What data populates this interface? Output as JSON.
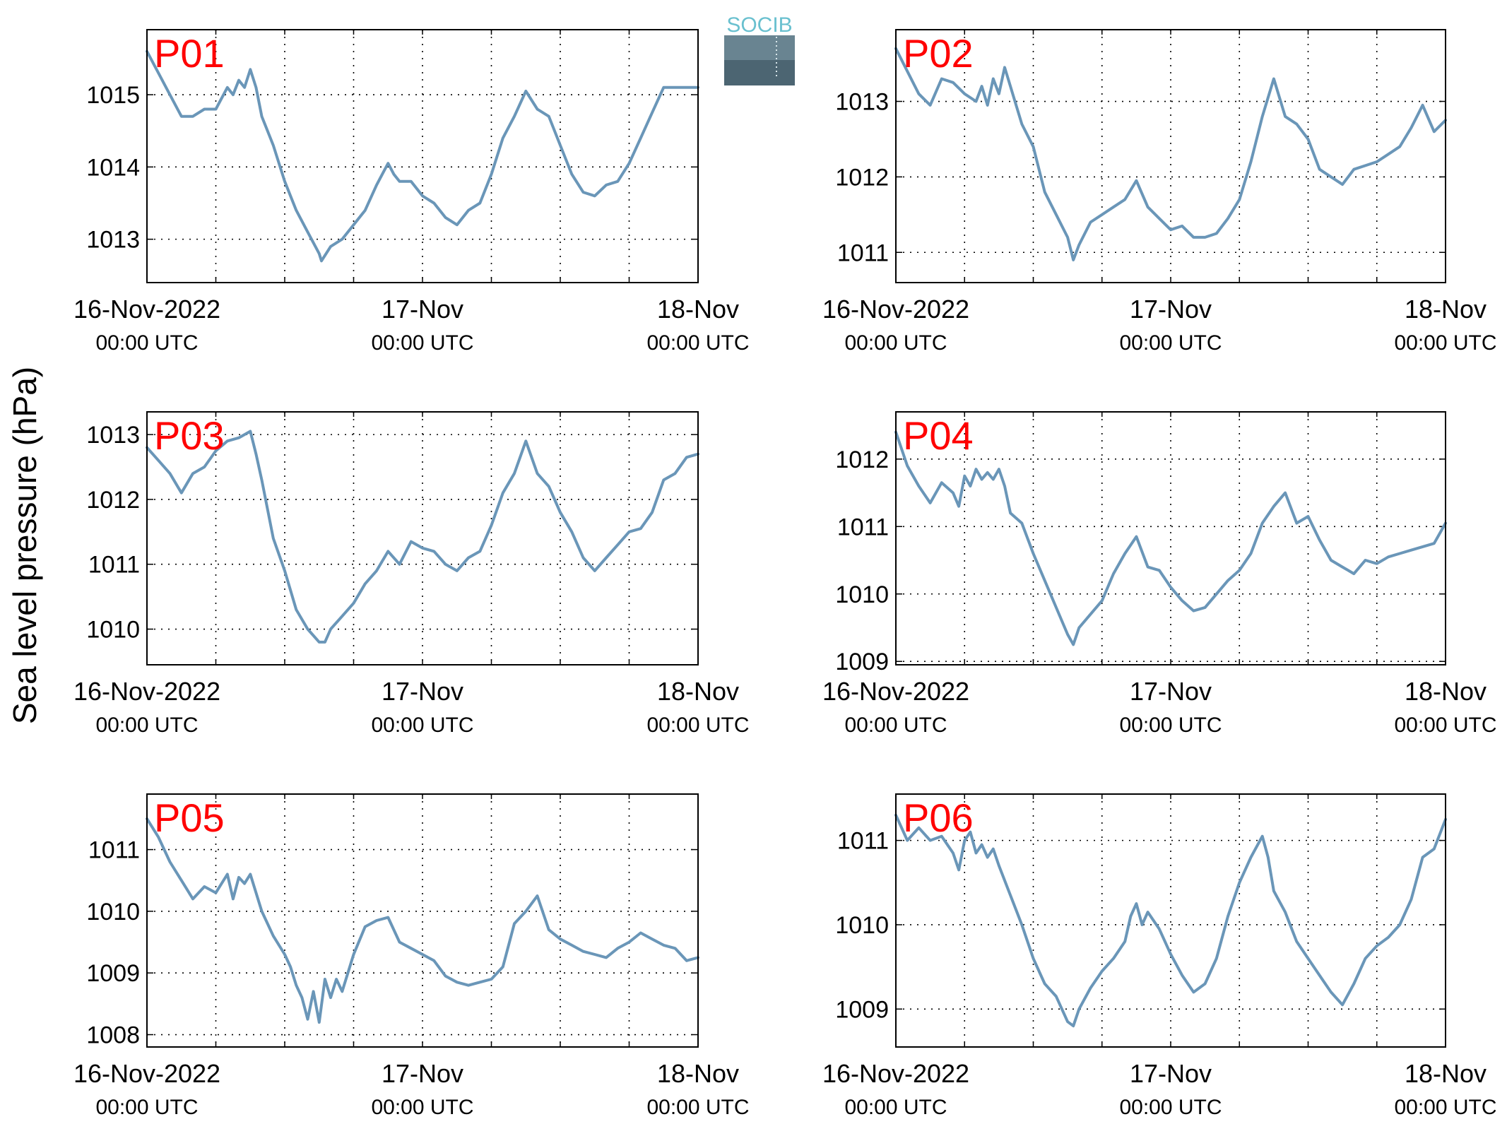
{
  "figure": {
    "ylabel": "Sea level pressure (hPa)",
    "logo_text": "SOCIB",
    "line_color": "#6a96b8",
    "label_color": "#ff0000"
  },
  "chart_data": [
    {
      "type": "line",
      "title": "P01",
      "x_unit": "hours since 16-Nov-2022 00:00 UTC",
      "x_ticks": [
        {
          "date": "16-Nov-2022",
          "time": "00:00 UTC"
        },
        {
          "date": "17-Nov",
          "time": "00:00 UTC"
        },
        {
          "date": "18-Nov",
          "time": "00:00 UTC"
        }
      ],
      "xlim": [
        0,
        48
      ],
      "ylim": [
        1012.4,
        1015.9
      ],
      "yticks": [
        1013,
        1014,
        1015
      ],
      "grid": true,
      "series": [
        {
          "x": [
            0,
            1,
            2,
            3,
            3.5,
            4,
            5,
            6,
            7,
            7.5,
            8,
            8.5,
            9,
            9.5,
            10,
            11,
            12,
            13,
            14,
            15,
            15.2,
            16,
            17,
            18,
            19,
            20,
            20.5,
            21,
            21.5,
            22,
            23,
            24,
            25,
            26,
            27,
            28,
            29,
            30,
            31,
            32,
            33,
            34,
            35,
            36,
            37,
            38,
            39,
            40,
            41,
            42,
            43,
            44,
            45,
            46,
            47,
            48
          ],
          "y": [
            1015.6,
            1015.3,
            1015,
            1014.7,
            1014.7,
            1014.7,
            1014.8,
            1014.8,
            1015.1,
            1015,
            1015.2,
            1015.1,
            1015.35,
            1015.1,
            1014.7,
            1014.3,
            1013.8,
            1013.4,
            1013.1,
            1012.8,
            1012.7,
            1012.9,
            1013,
            1013.2,
            1013.4,
            1013.75,
            1013.9,
            1014.05,
            1013.9,
            1013.8,
            1013.8,
            1013.6,
            1013.5,
            1013.3,
            1013.2,
            1013.4,
            1013.5,
            1013.9,
            1014.4,
            1014.7,
            1015.05,
            1014.8,
            1014.7,
            1014.3,
            1013.9,
            1013.65,
            1013.6,
            1013.75,
            1013.8,
            1014.05,
            1014.4,
            1014.75,
            1015.1,
            1015.1,
            1015.1,
            1015.1
          ]
        }
      ]
    },
    {
      "type": "line",
      "title": "P02",
      "x_unit": "hours since 16-Nov-2022 00:00 UTC",
      "x_ticks": [
        {
          "date": "16-Nov-2022",
          "time": "00:00 UTC"
        },
        {
          "date": "17-Nov",
          "time": "00:00 UTC"
        },
        {
          "date": "18-Nov",
          "time": "00:00 UTC"
        }
      ],
      "xlim": [
        0,
        48
      ],
      "ylim": [
        1010.6,
        1013.95
      ],
      "yticks": [
        1011,
        1012,
        1013
      ],
      "grid": true,
      "series": [
        {
          "x": [
            0,
            1,
            2,
            3,
            4,
            5,
            6,
            7,
            7.5,
            8,
            8.5,
            9,
            9.5,
            10,
            11,
            12,
            13,
            14,
            15,
            15.5,
            16,
            17,
            18,
            19,
            20,
            21,
            22,
            23,
            24,
            25,
            26,
            27,
            28,
            29,
            30,
            31,
            32,
            33,
            34,
            35,
            36,
            37,
            38,
            39,
            40,
            41,
            42,
            43,
            44,
            45,
            46,
            47,
            48
          ],
          "y": [
            1013.7,
            1013.4,
            1013.1,
            1012.95,
            1013.3,
            1013.25,
            1013.1,
            1013.0,
            1013.2,
            1012.95,
            1013.3,
            1013.1,
            1013.45,
            1013.2,
            1012.7,
            1012.4,
            1011.8,
            1011.5,
            1011.2,
            1010.9,
            1011.1,
            1011.4,
            1011.5,
            1011.6,
            1011.7,
            1011.95,
            1011.6,
            1011.45,
            1011.3,
            1011.35,
            1011.2,
            1011.2,
            1011.25,
            1011.45,
            1011.7,
            1012.2,
            1012.8,
            1013.3,
            1012.8,
            1012.7,
            1012.5,
            1012.1,
            1012.0,
            1011.9,
            1012.1,
            1012.15,
            1012.2,
            1012.3,
            1012.4,
            1012.65,
            1012.95,
            1012.6,
            1012.75
          ]
        }
      ]
    },
    {
      "type": "line",
      "title": "P03",
      "x_unit": "hours since 16-Nov-2022 00:00 UTC",
      "x_ticks": [
        {
          "date": "16-Nov-2022",
          "time": "00:00 UTC"
        },
        {
          "date": "17-Nov",
          "time": "00:00 UTC"
        },
        {
          "date": "18-Nov",
          "time": "00:00 UTC"
        }
      ],
      "xlim": [
        0,
        48
      ],
      "ylim": [
        1009.45,
        1013.35
      ],
      "yticks": [
        1010,
        1011,
        1012,
        1013
      ],
      "grid": true,
      "series": [
        {
          "x": [
            0,
            1,
            2,
            3,
            4,
            5,
            6,
            7,
            8,
            9,
            9.5,
            10,
            11,
            12,
            13,
            14,
            15,
            15.5,
            16,
            17,
            18,
            19,
            20,
            21,
            22,
            23,
            24,
            25,
            26,
            27,
            28,
            29,
            30,
            31,
            32,
            33,
            34,
            35,
            36,
            37,
            38,
            39,
            40,
            41,
            42,
            43,
            44,
            45,
            46,
            47,
            48
          ],
          "y": [
            1012.8,
            1012.6,
            1012.4,
            1012.1,
            1012.4,
            1012.5,
            1012.75,
            1012.9,
            1012.95,
            1013.05,
            1012.7,
            1012.3,
            1011.4,
            1010.9,
            1010.3,
            1010.0,
            1009.8,
            1009.8,
            1010.0,
            1010.2,
            1010.4,
            1010.7,
            1010.9,
            1011.2,
            1011.0,
            1011.35,
            1011.25,
            1011.2,
            1011.0,
            1010.9,
            1011.1,
            1011.2,
            1011.6,
            1012.1,
            1012.4,
            1012.9,
            1012.4,
            1012.2,
            1011.8,
            1011.5,
            1011.1,
            1010.9,
            1011.1,
            1011.3,
            1011.5,
            1011.55,
            1011.8,
            1012.3,
            1012.4,
            1012.65,
            1012.7
          ]
        }
      ]
    },
    {
      "type": "line",
      "title": "P04",
      "x_unit": "hours since 16-Nov-2022 00:00 UTC",
      "x_ticks": [
        {
          "date": "16-Nov-2022",
          "time": "00:00 UTC"
        },
        {
          "date": "17-Nov",
          "time": "00:00 UTC"
        },
        {
          "date": "18-Nov",
          "time": "00:00 UTC"
        }
      ],
      "xlim": [
        0,
        48
      ],
      "ylim": [
        1008.95,
        1012.7
      ],
      "yticks": [
        1009,
        1010,
        1011,
        1012
      ],
      "grid": true,
      "series": [
        {
          "x": [
            0,
            1,
            2,
            3,
            4,
            5,
            5.5,
            6,
            6.5,
            7,
            7.5,
            8,
            8.5,
            9,
            9.5,
            10,
            11,
            12,
            13,
            14,
            15,
            15.5,
            16,
            17,
            18,
            19,
            20,
            21,
            22,
            23,
            24,
            25,
            26,
            27,
            28,
            29,
            30,
            31,
            32,
            33,
            34,
            35,
            36,
            37,
            38,
            39,
            40,
            41,
            42,
            43,
            44,
            45,
            46,
            47,
            48
          ],
          "y": [
            1012.4,
            1011.9,
            1011.6,
            1011.35,
            1011.65,
            1011.5,
            1011.3,
            1011.75,
            1011.6,
            1011.85,
            1011.7,
            1011.8,
            1011.7,
            1011.85,
            1011.6,
            1011.2,
            1011.05,
            1010.6,
            1010.2,
            1009.8,
            1009.4,
            1009.25,
            1009.5,
            1009.7,
            1009.9,
            1010.3,
            1010.6,
            1010.85,
            1010.4,
            1010.35,
            1010.1,
            1009.9,
            1009.75,
            1009.8,
            1010.0,
            1010.2,
            1010.35,
            1010.6,
            1011.05,
            1011.3,
            1011.5,
            1011.05,
            1011.15,
            1010.8,
            1010.5,
            1010.4,
            1010.3,
            1010.5,
            1010.45,
            1010.55,
            1010.6,
            1010.65,
            1010.7,
            1010.75,
            1011.05
          ]
        }
      ]
    },
    {
      "type": "line",
      "title": "P05",
      "x_unit": "hours since 16-Nov-2022 00:00 UTC",
      "x_ticks": [
        {
          "date": "16-Nov-2022",
          "time": "00:00 UTC"
        },
        {
          "date": "17-Nov",
          "time": "00:00 UTC"
        },
        {
          "date": "18-Nov",
          "time": "00:00 UTC"
        }
      ],
      "xlim": [
        0,
        48
      ],
      "ylim": [
        1007.8,
        1011.9
      ],
      "yticks": [
        1008,
        1009,
        1010,
        1011
      ],
      "grid": true,
      "series": [
        {
          "x": [
            0,
            1,
            2,
            3,
            4,
            5,
            6,
            7,
            7.5,
            8,
            8.5,
            9,
            9.5,
            10,
            11,
            12,
            12.5,
            13,
            13.5,
            14,
            14.5,
            15,
            15.5,
            16,
            16.5,
            17,
            18,
            19,
            20,
            21,
            22,
            23,
            24,
            25,
            26,
            27,
            28,
            29,
            30,
            31,
            32,
            33,
            34,
            35,
            36,
            37,
            38,
            39,
            40,
            41,
            42,
            43,
            44,
            45,
            46,
            47,
            48
          ],
          "y": [
            1011.5,
            1011.2,
            1010.8,
            1010.5,
            1010.2,
            1010.4,
            1010.3,
            1010.6,
            1010.2,
            1010.55,
            1010.45,
            1010.6,
            1010.3,
            1010.0,
            1009.6,
            1009.3,
            1009.1,
            1008.8,
            1008.6,
            1008.25,
            1008.7,
            1008.2,
            1008.9,
            1008.6,
            1008.9,
            1008.7,
            1009.3,
            1009.75,
            1009.85,
            1009.9,
            1009.5,
            1009.4,
            1009.3,
            1009.2,
            1008.95,
            1008.85,
            1008.8,
            1008.85,
            1008.9,
            1009.1,
            1009.8,
            1010.0,
            1010.25,
            1009.7,
            1009.55,
            1009.45,
            1009.35,
            1009.3,
            1009.25,
            1009.4,
            1009.5,
            1009.65,
            1009.55,
            1009.45,
            1009.4,
            1009.2,
            1009.25
          ]
        }
      ]
    },
    {
      "type": "line",
      "title": "P06",
      "x_unit": "hours since 16-Nov-2022 00:00 UTC",
      "x_ticks": [
        {
          "date": "16-Nov-2022",
          "time": "00:00 UTC"
        },
        {
          "date": "17-Nov",
          "time": "00:00 UTC"
        },
        {
          "date": "18-Nov",
          "time": "00:00 UTC"
        }
      ],
      "xlim": [
        0,
        48
      ],
      "ylim": [
        1008.55,
        1011.55
      ],
      "yticks": [
        1009,
        1010,
        1011
      ],
      "grid": true,
      "series": [
        {
          "x": [
            0,
            1,
            2,
            3,
            4,
            5,
            5.5,
            6,
            6.5,
            7,
            7.5,
            8,
            8.5,
            9,
            10,
            11,
            12,
            13,
            14,
            15,
            15.5,
            16,
            17,
            18,
            19,
            20,
            20.5,
            21,
            21.5,
            22,
            23,
            24,
            25,
            26,
            27,
            28,
            29,
            30,
            31,
            32,
            32.5,
            33,
            34,
            35,
            36,
            37,
            38,
            39,
            40,
            41,
            42,
            43,
            44,
            45,
            46,
            47,
            48
          ],
          "y": [
            1011.3,
            1011.0,
            1011.15,
            1011.0,
            1011.05,
            1010.85,
            1010.65,
            1011.0,
            1011.1,
            1010.85,
            1010.95,
            1010.8,
            1010.9,
            1010.7,
            1010.35,
            1010.0,
            1009.6,
            1009.3,
            1009.15,
            1008.85,
            1008.8,
            1009.0,
            1009.25,
            1009.45,
            1009.6,
            1009.8,
            1010.1,
            1010.25,
            1010.0,
            1010.15,
            1009.95,
            1009.65,
            1009.4,
            1009.2,
            1009.3,
            1009.6,
            1010.1,
            1010.5,
            1010.8,
            1011.05,
            1010.8,
            1010.4,
            1010.15,
            1009.8,
            1009.6,
            1009.4,
            1009.2,
            1009.05,
            1009.3,
            1009.6,
            1009.75,
            1009.85,
            1010.0,
            1010.3,
            1010.8,
            1010.9,
            1011.25
          ]
        }
      ]
    }
  ]
}
